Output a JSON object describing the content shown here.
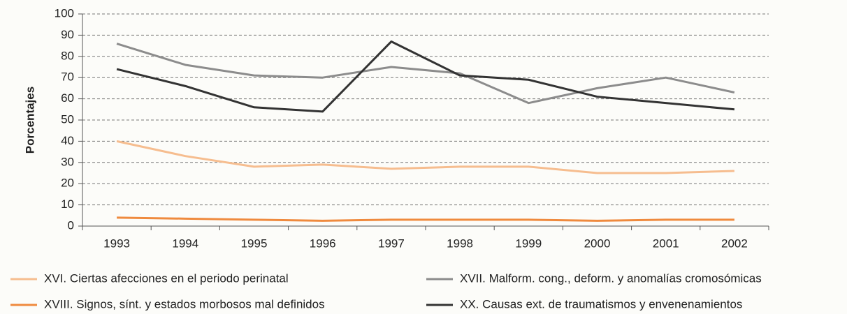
{
  "chart_data": {
    "type": "line",
    "y_label": "Porcentajes",
    "categories": [
      "1993",
      "1994",
      "1995",
      "1996",
      "1997",
      "1998",
      "1999",
      "2000",
      "2001",
      "2002"
    ],
    "series": [
      {
        "name": "XVI. Ciertas afecciones en el periodo perinatal",
        "color": "#f6bd8f",
        "values": [
          40,
          33,
          28,
          29,
          27,
          28,
          28,
          25,
          25,
          26
        ]
      },
      {
        "name": "XVII. Malform. cong., deform. y anomalías cromosómicas",
        "color": "#8c8c8c",
        "values": [
          86,
          76,
          71,
          70,
          75,
          72,
          58,
          65,
          70,
          63
        ]
      },
      {
        "name": "XVIII. Signos, sínt. y estados morbosos mal definidos",
        "color": "#ef8a3e",
        "values": [
          4,
          3.5,
          3,
          2.5,
          3,
          3,
          3,
          2.5,
          3,
          3
        ]
      },
      {
        "name": "XX. Causas ext. de traumatismos y envenenamientos",
        "color": "#333333",
        "values": [
          74,
          66,
          56,
          54,
          87,
          71,
          69,
          61,
          58,
          55
        ]
      }
    ],
    "ylim": [
      0,
      100
    ],
    "yticks": [
      0,
      10,
      20,
      30,
      40,
      50,
      60,
      70,
      80,
      90,
      100
    ],
    "grid": true
  }
}
